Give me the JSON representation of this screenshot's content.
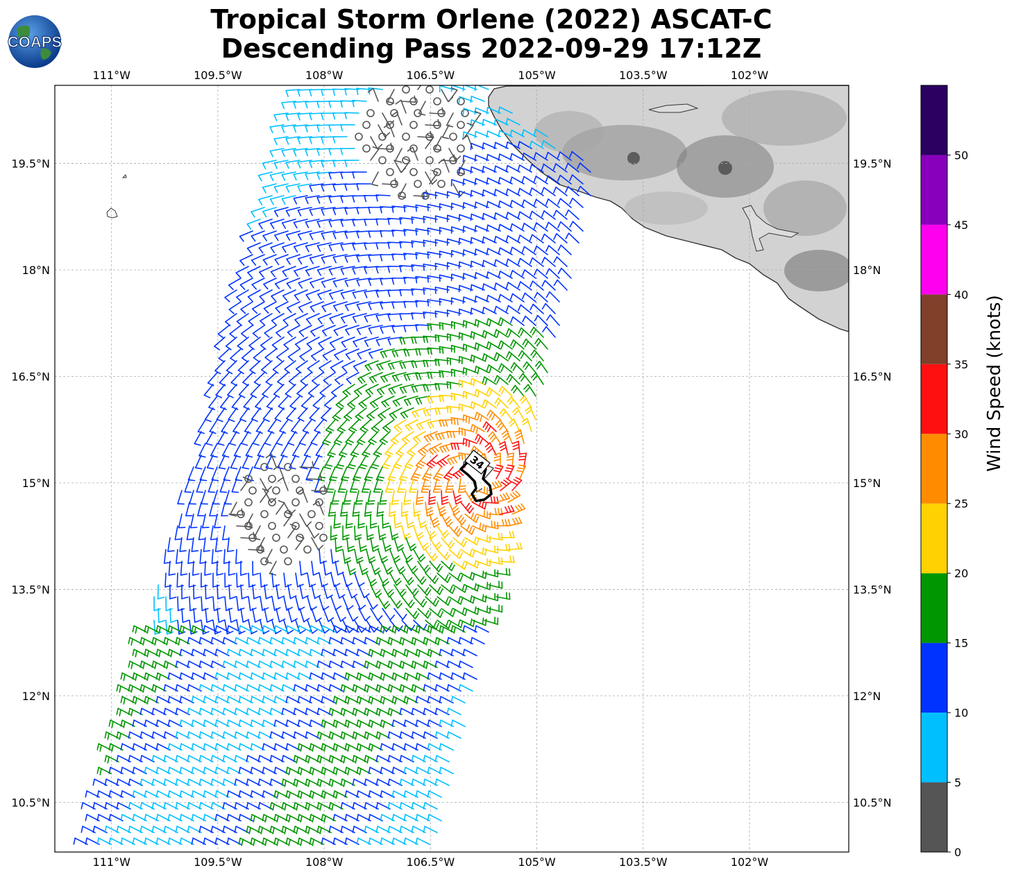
{
  "title": {
    "line1": "Tropical Storm Orlene (2022) ASCAT-C",
    "line2": "Descending Pass 2022-09-29 17:12Z"
  },
  "logo_text": "COAPS",
  "map": {
    "lon_range": [
      -111.8,
      -100.6
    ],
    "lat_range": [
      9.8,
      20.6
    ],
    "lon_ticks": [
      "111°W",
      "109.5°W",
      "108°W",
      "106.5°W",
      "105°W",
      "103.5°W",
      "102°W"
    ],
    "lon_tick_values": [
      -111,
      -109.5,
      -108,
      -106.5,
      -105,
      -103.5,
      -102
    ],
    "lat_ticks": [
      "19.5°N",
      "18°N",
      "16.5°N",
      "15°N",
      "13.5°N",
      "12°N",
      "10.5°N"
    ],
    "lat_tick_values": [
      19.5,
      18,
      16.5,
      15,
      13.5,
      12,
      10.5
    ],
    "gridlines": true,
    "land_shading": "grayscale elevation",
    "storm_center": {
      "lon": -105.85,
      "lat": 15.1
    },
    "wind_radius_label": "34"
  },
  "colorbar": {
    "label": "Wind Speed (knots)",
    "ticks": [
      "0",
      "5",
      "10",
      "15",
      "20",
      "25",
      "30",
      "35",
      "40",
      "45",
      "50"
    ],
    "bins": [
      {
        "min": 0,
        "max": 5,
        "color": "#555555"
      },
      {
        "min": 5,
        "max": 10,
        "color": "#00bfff"
      },
      {
        "min": 10,
        "max": 15,
        "color": "#0033ff"
      },
      {
        "min": 15,
        "max": 20,
        "color": "#009600"
      },
      {
        "min": 20,
        "max": 25,
        "color": "#ffd200"
      },
      {
        "min": 25,
        "max": 30,
        "color": "#ff8c00"
      },
      {
        "min": 30,
        "max": 35,
        "color": "#ff1010"
      },
      {
        "min": 35,
        "max": 40,
        "color": "#80402a"
      },
      {
        "min": 40,
        "max": 45,
        "color": "#ff00ee"
      },
      {
        "min": 45,
        "max": 50,
        "color": "#8800bb"
      },
      {
        "min": 50,
        "max": 55,
        "color": "#2a0060"
      }
    ]
  }
}
